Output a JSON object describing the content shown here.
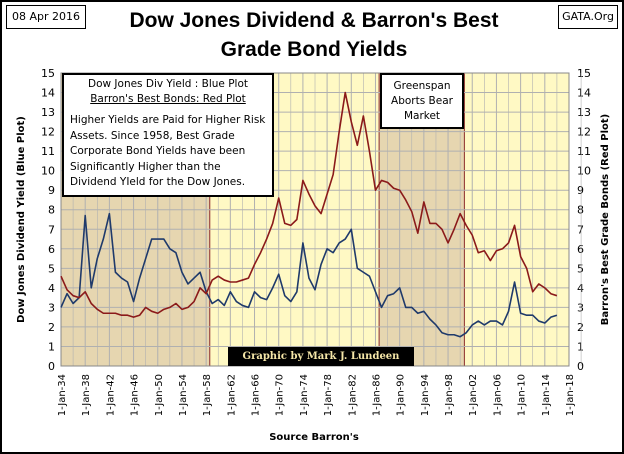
{
  "header": {
    "date": "08 Apr 2016",
    "site": "GATA.Org"
  },
  "legend_box": {
    "line1": "Dow Jones Div Yield : Blue Plot",
    "line2": "Barron's Best Bonds: Red Plot",
    "body": "Higher Yields are Paid for Higher Risk Assets.  Since 1958, Best Grade Corporate Bond Yields have been Significantly Higher than the Dividend YIeld for the Dow Jones."
  },
  "annotation": "Greenspan Aborts Bear Market",
  "credit": "Graphic by Mark J. Lundeen",
  "colors": {
    "plot_bg": "#fff9c4",
    "shade": "#e6d6b0",
    "blue": "#1f3a6b",
    "red": "#8b1a1a",
    "grid": "#b0b0b0"
  },
  "chart_data": {
    "type": "line",
    "title": "Dow Jones Dividend & Barron's Best Grade Bond Yields",
    "xlabel": "Source Barron's",
    "ylabel": "Dow Jones Dividend Yield (Blue Plot)",
    "y2label": "Barron's Best Grade Bonds (Red Plot)",
    "xlim": [
      1934,
      2018
    ],
    "ylim": [
      0,
      15
    ],
    "grid": true,
    "yticks": [
      "0",
      "1",
      "2",
      "3",
      "4",
      "5",
      "6",
      "7",
      "8",
      "9",
      "10",
      "11",
      "12",
      "13",
      "14",
      "15"
    ],
    "xticks": [
      "1-Jan-34",
      "1-Jan-38",
      "1-Jan-42",
      "1-Jan-46",
      "1-Jan-50",
      "1-Jan-54",
      "1-Jan-58",
      "1-Jan-62",
      "1-Jan-66",
      "1-Jan-70",
      "1-Jan-74",
      "1-Jan-78",
      "1-Jan-82",
      "1-Jan-86",
      "1-Jan-90",
      "1-Jan-94",
      "1-Jan-98",
      "1-Jan-02",
      "1-Jan-06",
      "1-Jan-10",
      "1-Jan-14",
      "1-Jan-18"
    ],
    "shaded_ranges": [
      [
        1934,
        1958.6
      ],
      [
        1986.6,
        2000.7
      ]
    ],
    "x": [
      1934,
      1935,
      1936,
      1937,
      1938,
      1939,
      1940,
      1941,
      1942,
      1943,
      1944,
      1945,
      1946,
      1947,
      1948,
      1949,
      1950,
      1951,
      1952,
      1953,
      1954,
      1955,
      1956,
      1957,
      1958,
      1959,
      1960,
      1961,
      1962,
      1963,
      1964,
      1965,
      1966,
      1967,
      1968,
      1969,
      1970,
      1971,
      1972,
      1973,
      1974,
      1975,
      1976,
      1977,
      1978,
      1979,
      1980,
      1981,
      1982,
      1983,
      1984,
      1985,
      1986,
      1987,
      1988,
      1989,
      1990,
      1991,
      1992,
      1993,
      1994,
      1995,
      1996,
      1997,
      1998,
      1999,
      2000,
      2001,
      2002,
      2003,
      2004,
      2005,
      2006,
      2007,
      2008,
      2009,
      2010,
      2011,
      2012,
      2013,
      2014,
      2015,
      2016
    ],
    "series": [
      {
        "name": "Dow Jones Div Yield",
        "color": "blue",
        "values": [
          3.0,
          3.7,
          3.2,
          3.5,
          7.7,
          4.0,
          5.5,
          6.5,
          7.8,
          4.8,
          4.5,
          4.3,
          3.3,
          4.5,
          5.5,
          6.5,
          6.5,
          6.5,
          6.0,
          5.8,
          4.8,
          4.2,
          4.5,
          4.8,
          3.8,
          3.2,
          3.4,
          3.1,
          3.8,
          3.3,
          3.1,
          3.0,
          3.8,
          3.5,
          3.4,
          4.0,
          4.7,
          3.6,
          3.3,
          3.8,
          6.3,
          4.5,
          3.9,
          5.2,
          6.0,
          5.8,
          6.3,
          6.5,
          7.0,
          5.0,
          4.8,
          4.6,
          3.8,
          3.0,
          3.6,
          3.7,
          4.0,
          3.0,
          3.0,
          2.7,
          2.8,
          2.4,
          2.1,
          1.7,
          1.6,
          1.6,
          1.5,
          1.7,
          2.1,
          2.3,
          2.1,
          2.3,
          2.3,
          2.1,
          2.8,
          4.3,
          2.7,
          2.6,
          2.6,
          2.3,
          2.2,
          2.5,
          2.6
        ]
      },
      {
        "name": "Barron's Best Bonds",
        "color": "red",
        "values": [
          4.6,
          3.9,
          3.6,
          3.5,
          3.8,
          3.2,
          2.9,
          2.7,
          2.7,
          2.7,
          2.6,
          2.6,
          2.5,
          2.6,
          3.0,
          2.8,
          2.7,
          2.9,
          3.0,
          3.2,
          2.9,
          3.0,
          3.3,
          4.0,
          3.7,
          4.4,
          4.6,
          4.4,
          4.3,
          4.3,
          4.4,
          4.5,
          5.2,
          5.8,
          6.5,
          7.3,
          8.6,
          7.3,
          7.2,
          7.5,
          9.5,
          8.8,
          8.2,
          7.8,
          8.8,
          9.8,
          12.0,
          14.0,
          12.5,
          11.3,
          12.8,
          11.0,
          9.0,
          9.5,
          9.4,
          9.1,
          9.0,
          8.5,
          7.9,
          6.8,
          8.4,
          7.3,
          7.3,
          7.0,
          6.3,
          7.0,
          7.8,
          7.2,
          6.7,
          5.8,
          5.9,
          5.4,
          5.9,
          6.0,
          6.3,
          7.2,
          5.6,
          5.0,
          3.8,
          4.2,
          4.0,
          3.7,
          3.6
        ]
      }
    ]
  }
}
